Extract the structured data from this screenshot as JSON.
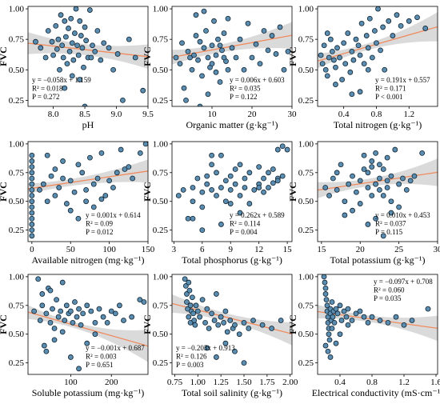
{
  "colors": {
    "point_fill": "#5b8db0",
    "point_edge": "#0f2230",
    "fit_line": "#f08a5d",
    "ci_band": "#bcbcbc"
  },
  "chart_data": [
    {
      "type": "scatter",
      "xlabel": "pH",
      "ylabel": "FVC",
      "xlim": [
        7.6,
        9.5
      ],
      "ylim": [
        0.2,
        1.02
      ],
      "xticks": [
        "8.0",
        "8.5",
        "9.0",
        "9.5"
      ],
      "xtick_values": [
        8.0,
        8.5,
        9.0,
        9.5
      ],
      "yticks": [
        "0.25",
        "0.50",
        "0.75",
        "1.00"
      ],
      "ytick_values": [
        0.25,
        0.5,
        0.75,
        1.0
      ],
      "fit": {
        "slope": -0.058,
        "intercept": 1.159
      },
      "ci_half": [
        0.09,
        0.045,
        0.1
      ],
      "annotation": [
        "y = −0.058x + 1.159",
        "R² = 0.018",
        "P = 0.272"
      ],
      "annotation_pos": "bottom-left",
      "x": [
        7.72,
        7.8,
        7.88,
        7.92,
        7.98,
        8.0,
        8.04,
        8.06,
        8.08,
        8.1,
        8.12,
        8.14,
        8.16,
        8.18,
        8.2,
        8.22,
        8.24,
        8.26,
        8.28,
        8.3,
        8.32,
        8.34,
        8.36,
        8.38,
        8.4,
        8.42,
        8.44,
        8.46,
        8.48,
        8.5,
        8.52,
        8.55,
        8.58,
        8.62,
        8.66,
        8.7,
        8.75,
        8.8,
        8.88,
        8.95,
        9.02,
        9.1,
        9.2,
        9.3,
        9.42,
        8.18,
        8.3,
        8.42,
        8.5,
        8.6
      ],
      "y": [
        0.73,
        0.68,
        0.6,
        0.82,
        0.73,
        0.62,
        0.86,
        0.67,
        0.75,
        0.5,
        0.95,
        0.7,
        0.6,
        0.9,
        0.77,
        0.55,
        0.84,
        0.65,
        0.92,
        0.72,
        0.58,
        0.8,
        1.0,
        0.7,
        0.62,
        0.42,
        0.78,
        0.68,
        0.52,
        0.85,
        0.74,
        0.6,
        0.99,
        0.7,
        0.65,
        0.82,
        0.58,
        0.72,
        0.68,
        0.5,
        0.63,
        0.25,
        0.75,
        0.6,
        0.33,
        0.35,
        0.45,
        0.9,
        0.2,
        0.6
      ]
    },
    {
      "type": "scatter",
      "xlabel": "Organic matter (g·kg⁻¹)",
      "ylabel": "FVC",
      "xlim": [
        0,
        30
      ],
      "ylim": [
        0.2,
        1.02
      ],
      "xticks": [
        "10",
        "20",
        "30"
      ],
      "xtick_values": [
        10,
        20,
        30
      ],
      "yticks": [
        "0.25",
        "0.50",
        "0.75",
        "1.00"
      ],
      "ytick_values": [
        0.25,
        0.5,
        0.75,
        1.0
      ],
      "fit": {
        "slope": 0.006,
        "intercept": 0.603
      },
      "ci_half": [
        0.06,
        0.035,
        0.11
      ],
      "annotation": [
        "y = 0.006x + 0.603",
        "R² = 0.035",
        "P = 0.122"
      ],
      "annotation_pos": "bottom-right",
      "x": [
        1,
        2,
        2.5,
        3,
        3.5,
        4,
        4.5,
        5,
        5.5,
        6,
        6.5,
        7,
        7.5,
        8,
        8.5,
        9,
        9.5,
        10,
        10.5,
        11,
        11.5,
        12,
        12.5,
        13,
        13.5,
        14,
        15,
        16,
        17,
        18,
        19,
        20,
        21,
        22,
        23,
        24,
        25,
        26,
        27,
        28,
        29,
        8,
        9,
        10,
        11,
        12,
        13,
        14,
        6,
        7
      ],
      "y": [
        0.6,
        0.55,
        0.72,
        0.35,
        0.25,
        0.65,
        0.6,
        0.5,
        0.62,
        0.95,
        0.58,
        0.73,
        0.45,
        0.68,
        0.82,
        0.6,
        0.52,
        0.7,
        0.9,
        0.62,
        0.75,
        0.4,
        0.66,
        0.8,
        0.57,
        0.92,
        0.68,
        0.6,
        0.75,
        0.5,
        0.88,
        0.6,
        0.71,
        0.55,
        0.82,
        0.66,
        0.78,
        0.63,
        0.85,
        0.5,
        0.65,
        0.98,
        0.3,
        0.55,
        0.48,
        0.7,
        0.6,
        0.5,
        0.78,
        0.2
      ]
    },
    {
      "type": "scatter",
      "xlabel": "Total nitrogen (g·kg⁻¹)",
      "ylabel": "FVC",
      "xlim": [
        0.08,
        1.55
      ],
      "ylim": [
        0.2,
        1.02
      ],
      "xticks": [
        "0.4",
        "0.8",
        "1.2"
      ],
      "xtick_values": [
        0.4,
        0.8,
        1.2
      ],
      "yticks": [
        "0.25",
        "0.50",
        "0.75",
        "1.00"
      ],
      "ytick_values": [
        0.25,
        0.5,
        0.75,
        1.0
      ],
      "fit": {
        "slope": 0.191,
        "intercept": 0.557
      },
      "ci_half": [
        0.06,
        0.03,
        0.12
      ],
      "annotation": [
        "y = 0.191x + 0.557",
        "R² = 0.171",
        "P  < 0.001"
      ],
      "annotation_pos": "bottom-right",
      "x": [
        0.12,
        0.14,
        0.16,
        0.18,
        0.2,
        0.22,
        0.24,
        0.26,
        0.28,
        0.3,
        0.32,
        0.35,
        0.38,
        0.4,
        0.42,
        0.45,
        0.48,
        0.5,
        0.52,
        0.55,
        0.58,
        0.6,
        0.62,
        0.65,
        0.68,
        0.7,
        0.72,
        0.75,
        0.78,
        0.8,
        0.82,
        0.85,
        0.88,
        0.9,
        0.95,
        1.0,
        1.05,
        1.1,
        1.2,
        1.3,
        1.4,
        0.2,
        0.3,
        0.5,
        0.6,
        0.7
      ],
      "y": [
        0.62,
        0.55,
        0.7,
        0.5,
        0.45,
        0.6,
        0.75,
        0.65,
        0.58,
        0.52,
        0.68,
        0.6,
        0.42,
        0.72,
        0.55,
        0.8,
        0.48,
        0.65,
        0.58,
        0.75,
        0.7,
        0.62,
        0.88,
        0.55,
        0.78,
        0.68,
        0.92,
        0.6,
        0.82,
        0.72,
        1.0,
        0.66,
        0.85,
        0.5,
        0.9,
        0.78,
        0.95,
        0.86,
        0.9,
        0.93,
        0.84,
        0.8,
        0.38,
        0.3,
        0.32,
        0.5
      ]
    },
    {
      "type": "scatter",
      "xlabel": "Available nitrogen (mg·kg⁻¹)",
      "ylabel": "FVC",
      "xlim": [
        -5,
        150
      ],
      "ylim": [
        0.15,
        1.02
      ],
      "xticks": [
        "0",
        "50",
        "100",
        "150"
      ],
      "xtick_values": [
        0,
        50,
        100,
        150
      ],
      "yticks": [
        "0.25",
        "0.50",
        "0.75",
        "1.00"
      ],
      "ytick_values": [
        0.25,
        0.5,
        0.75,
        1.0
      ],
      "fit": {
        "slope": 0.001,
        "intercept": 0.614
      },
      "ci_half": [
        0.045,
        0.035,
        0.1
      ],
      "annotation": [
        "y = 0.001x + 0.614",
        "R² = 0.09",
        "P = 0.012"
      ],
      "annotation_pos": "bottom-right",
      "x": [
        0,
        0,
        0,
        0,
        0,
        0,
        0,
        0,
        0,
        0,
        0,
        0,
        0,
        0,
        0,
        10,
        15,
        20,
        25,
        30,
        35,
        40,
        45,
        50,
        55,
        60,
        65,
        70,
        75,
        80,
        85,
        90,
        95,
        100,
        105,
        110,
        115,
        120,
        125,
        130,
        140,
        147,
        50,
        60,
        70,
        80,
        90,
        20,
        30,
        40
      ],
      "y": [
        0.2,
        0.25,
        0.3,
        0.35,
        0.4,
        0.45,
        0.5,
        0.55,
        0.6,
        0.65,
        0.7,
        0.75,
        0.8,
        0.85,
        0.9,
        0.6,
        0.65,
        0.5,
        0.72,
        0.55,
        0.62,
        0.7,
        0.48,
        0.68,
        0.58,
        0.82,
        0.75,
        0.6,
        0.88,
        0.65,
        0.7,
        0.92,
        0.55,
        0.68,
        0.62,
        0.75,
        0.95,
        0.78,
        0.8,
        0.7,
        0.92,
        1.0,
        0.42,
        0.35,
        0.5,
        0.45,
        0.52,
        0.9,
        0.78,
        0.85
      ]
    },
    {
      "type": "scatter",
      "xlabel": "Total phosphorus (g·kg⁻¹)",
      "ylabel": "FVC",
      "xlim": [
        2.8,
        15.5
      ],
      "ylim": [
        0.15,
        1.02
      ],
      "xticks": [
        "3",
        "6",
        "9",
        "12",
        "15"
      ],
      "xtick_values": [
        3,
        6,
        9,
        12,
        15
      ],
      "yticks": [
        "0.25",
        "0.50",
        "0.75",
        "1.00"
      ],
      "ytick_values": [
        0.25,
        0.5,
        0.75,
        1.0
      ],
      "fit": {
        "slope": 0.262,
        "intercept": 0.589
      },
      "ci_half": [
        0.07,
        0.035,
        0.1
      ],
      "annotation": [
        "y = 0.262x + 0.589",
        "R² = 0.114",
        "P = 0.004"
      ],
      "annotation_pos": "bottom-right",
      "x": [
        3.5,
        4,
        4.5,
        5,
        5,
        5.5,
        6,
        6,
        6.5,
        6.5,
        7,
        7,
        7.5,
        7.5,
        8,
        8,
        8.5,
        8.5,
        9,
        9,
        9.5,
        9.5,
        10,
        10,
        10.5,
        10.5,
        11,
        11,
        11.5,
        12,
        12,
        12.5,
        12.5,
        13,
        13,
        13.5,
        13.5,
        14,
        14,
        14.5,
        14.5,
        15,
        6,
        8,
        10,
        12,
        14,
        5,
        7,
        9
      ],
      "y": [
        0.55,
        0.6,
        0.35,
        0.62,
        0.5,
        0.7,
        0.58,
        0.45,
        0.65,
        0.72,
        0.6,
        0.82,
        0.55,
        0.75,
        0.62,
        0.9,
        0.68,
        0.5,
        0.72,
        0.6,
        0.65,
        0.78,
        0.55,
        0.82,
        0.62,
        0.7,
        0.48,
        0.75,
        0.6,
        0.65,
        0.8,
        0.58,
        0.7,
        0.62,
        0.75,
        0.66,
        0.78,
        0.7,
        0.95,
        0.72,
        0.98,
        0.95,
        0.25,
        0.3,
        0.4,
        0.62,
        0.68,
        0.35,
        0.9,
        0.48
      ]
    },
    {
      "type": "scatter",
      "xlabel": "Total potassium (g·kg⁻¹)",
      "ylabel": "FVC",
      "xlim": [
        14.5,
        30
      ],
      "ylim": [
        0.15,
        1.02
      ],
      "xticks": [
        "15",
        "20",
        "25",
        "30"
      ],
      "xtick_values": [
        15,
        20,
        25,
        30
      ],
      "yticks": [
        "0.25",
        "0.50",
        "0.75",
        "1.00"
      ],
      "ytick_values": [
        0.25,
        0.5,
        0.75,
        1.0
      ],
      "fit": {
        "slope": 0.01,
        "intercept": 0.453
      },
      "ci_half": [
        0.07,
        0.035,
        0.12
      ],
      "annotation": [
        "y = 0.010x + 0.453",
        "R² = 0.037",
        "P = 0.115"
      ],
      "annotation_pos": "bottom-right",
      "x": [
        15.5,
        16,
        16.5,
        17,
        17.5,
        18,
        18.5,
        19,
        19.5,
        20,
        20.5,
        21,
        21,
        21.5,
        21.5,
        22,
        22,
        22.5,
        22.5,
        23,
        23,
        23.5,
        23.5,
        24,
        24,
        24.5,
        25,
        25.5,
        26,
        26.5,
        27,
        28,
        18,
        19,
        20,
        21,
        22,
        23,
        24,
        25,
        20.5,
        21.5,
        22.5,
        23.5,
        17
      ],
      "y": [
        0.62,
        0.55,
        0.7,
        0.6,
        0.82,
        0.5,
        0.65,
        0.72,
        0.58,
        0.68,
        0.9,
        0.62,
        0.75,
        0.55,
        0.85,
        0.65,
        0.92,
        0.7,
        0.6,
        0.78,
        0.55,
        0.88,
        0.68,
        0.72,
        0.5,
        0.95,
        0.65,
        0.7,
        0.6,
        0.68,
        0.72,
        0.92,
        0.38,
        0.42,
        0.48,
        0.3,
        0.35,
        0.2,
        0.4,
        0.45,
        0.78,
        0.8,
        0.82,
        0.62,
        0.75
      ]
    },
    {
      "type": "scatter",
      "xlabel": "Soluble potassium (mg·kg⁻¹)",
      "ylabel": "FVC",
      "xlim": [
        -5,
        290
      ],
      "ylim": [
        0.15,
        1.02
      ],
      "xticks": [
        "100",
        "200"
      ],
      "xtick_values": [
        100,
        200
      ],
      "yticks": [
        "0.25",
        "0.50",
        "0.75",
        "1.00"
      ],
      "ytick_values": [
        0.25,
        0.5,
        0.75,
        1.0
      ],
      "fit": {
        "slope": -0.001,
        "intercept": 0.687
      },
      "ci_half": [
        0.06,
        0.03,
        0.14
      ],
      "annotation": [
        "y = −0.001x + 0.687",
        "R² = 0.003",
        "P = 0.651"
      ],
      "annotation_pos": "bottom-right",
      "x": [
        10,
        20,
        25,
        30,
        35,
        40,
        45,
        50,
        55,
        60,
        65,
        70,
        75,
        80,
        85,
        90,
        95,
        100,
        105,
        110,
        115,
        120,
        125,
        130,
        140,
        150,
        160,
        170,
        180,
        190,
        200,
        210,
        220,
        230,
        250,
        270,
        280,
        40,
        60,
        80,
        100,
        120,
        140,
        160,
        30,
        50
      ],
      "y": [
        0.7,
        0.98,
        0.62,
        0.75,
        0.4,
        0.68,
        0.9,
        0.6,
        0.72,
        0.55,
        0.8,
        0.65,
        0.7,
        0.95,
        0.62,
        0.75,
        0.68,
        0.7,
        0.6,
        0.78,
        0.65,
        0.72,
        0.58,
        0.68,
        0.75,
        0.7,
        0.6,
        0.72,
        0.65,
        0.6,
        0.7,
        0.68,
        0.75,
        0.62,
        0.65,
        0.8,
        0.78,
        0.35,
        0.45,
        0.52,
        0.3,
        0.2,
        0.42,
        0.5,
        0.85,
        0.88
      ]
    },
    {
      "type": "scatter",
      "xlabel": "Total soil salinity (g·kg⁻¹)",
      "ylabel": "FVC",
      "xlim": [
        0.72,
        2.02
      ],
      "ylim": [
        0.15,
        1.02
      ],
      "xticks": [
        "0.75",
        "1.00",
        "1.25",
        "1.50",
        "1.75",
        "2.00"
      ],
      "xtick_values": [
        0.75,
        1.0,
        1.25,
        1.5,
        1.75,
        2.0
      ],
      "yticks": [
        "0.25",
        "0.50",
        "0.75",
        "1.00"
      ],
      "ytick_values": [
        0.25,
        0.5,
        0.75,
        1.0
      ],
      "fit": {
        "slope": -0.203,
        "intercept": 0.913
      },
      "ci_half": [
        0.08,
        0.035,
        0.1
      ],
      "annotation": [
        "y = −0.203x + 0.913",
        "R² = 0.126",
        "P = 0.003"
      ],
      "annotation_pos": "bottom-left",
      "x": [
        0.86,
        0.87,
        0.88,
        0.88,
        0.89,
        0.9,
        0.9,
        0.91,
        0.92,
        0.92,
        0.93,
        0.94,
        0.95,
        0.96,
        0.97,
        0.98,
        1.0,
        1.02,
        1.05,
        1.08,
        1.1,
        1.12,
        1.15,
        1.18,
        1.2,
        1.22,
        1.25,
        1.28,
        1.3,
        1.32,
        1.35,
        1.38,
        1.4,
        1.45,
        1.5,
        1.55,
        1.6,
        1.7,
        1.8,
        1.9,
        1.1,
        1.2,
        1.3,
        1.4,
        1.5
      ],
      "y": [
        0.98,
        0.92,
        0.85,
        0.78,
        0.72,
        0.95,
        0.65,
        0.88,
        0.6,
        0.75,
        0.7,
        0.82,
        0.68,
        0.62,
        0.58,
        0.75,
        0.7,
        0.65,
        0.8,
        0.6,
        0.72,
        0.55,
        0.68,
        0.62,
        0.85,
        0.58,
        0.65,
        0.6,
        0.7,
        0.52,
        0.62,
        0.55,
        0.58,
        0.5,
        0.6,
        0.55,
        0.62,
        0.58,
        0.55,
        0.62,
        0.38,
        0.3,
        0.42,
        0.35,
        0.25
      ]
    },
    {
      "type": "scatter",
      "xlabel": "Electrical conductivity (mS·cm⁻¹)",
      "ylabel": "FVC",
      "xlim": [
        0.12,
        1.62
      ],
      "ylim": [
        0.15,
        1.02
      ],
      "xticks": [
        "0.4",
        "0.8",
        "1.2",
        "1.6"
      ],
      "xtick_values": [
        0.4,
        0.8,
        1.2,
        1.6
      ],
      "yticks": [
        "0.25",
        "0.50",
        "0.75",
        "1.00"
      ],
      "ytick_values": [
        0.25,
        0.5,
        0.75,
        1.0
      ],
      "fit": {
        "slope": -0.097,
        "intercept": 0.708
      },
      "ci_half": [
        0.06,
        0.03,
        0.11
      ],
      "annotation": [
        "y = −0.097x + 0.708",
        "R² = 0.060",
        "P = 0.035"
      ],
      "annotation_pos": "top-right",
      "x": [
        0.2,
        0.21,
        0.22,
        0.22,
        0.23,
        0.24,
        0.24,
        0.25,
        0.25,
        0.26,
        0.26,
        0.27,
        0.28,
        0.28,
        0.29,
        0.3,
        0.31,
        0.32,
        0.33,
        0.35,
        0.37,
        0.4,
        0.42,
        0.45,
        0.48,
        0.5,
        0.55,
        0.6,
        0.65,
        0.7,
        0.75,
        0.8,
        0.9,
        1.0,
        1.1,
        1.2,
        1.3,
        1.5,
        0.22,
        0.25,
        0.28,
        0.3,
        0.35,
        0.4,
        0.5
      ],
      "y": [
        1.0,
        0.95,
        0.9,
        0.85,
        0.8,
        0.75,
        0.7,
        0.65,
        0.6,
        0.55,
        0.5,
        0.45,
        0.72,
        0.68,
        0.62,
        0.78,
        0.65,
        0.7,
        0.6,
        0.72,
        0.68,
        0.75,
        0.62,
        0.7,
        0.65,
        0.72,
        0.62,
        0.68,
        0.7,
        0.65,
        0.6,
        0.65,
        0.62,
        0.6,
        0.65,
        0.58,
        0.62,
        0.72,
        0.4,
        0.35,
        0.3,
        0.55,
        0.42,
        0.5,
        0.58
      ]
    }
  ]
}
